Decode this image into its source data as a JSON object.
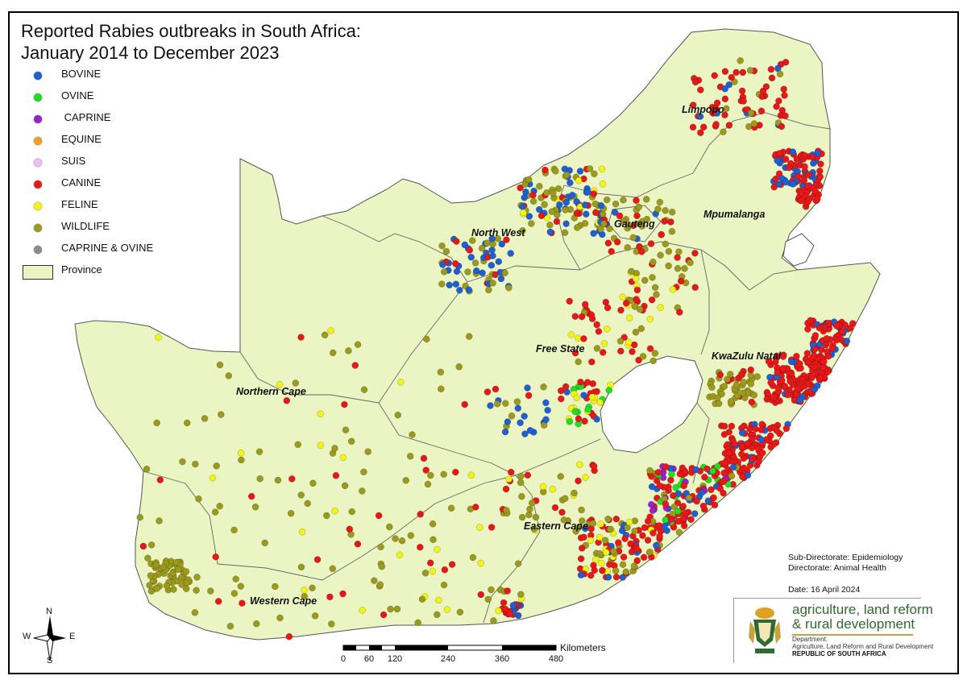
{
  "title": {
    "line1": "Reported Rabies outbreaks in South Africa:",
    "line2": "January 2014  to December 2023"
  },
  "legend": [
    {
      "label": "BOVINE",
      "color": "#1f5fd0"
    },
    {
      "label": "OVINE",
      "color": "#22dd22"
    },
    {
      "label": " CAPRINE",
      "color": "#9a1fd1"
    },
    {
      "label": "EQUINE",
      "color": "#f5a01a"
    },
    {
      "label": "SUIS",
      "color": "#f2c0ec"
    },
    {
      "label": "CANINE",
      "color": "#e81818"
    },
    {
      "label": "FELINE",
      "color": "#f4f412"
    },
    {
      "label": "WILDLIFE",
      "color": "#9c9a1c"
    },
    {
      "label": "CAPRINE & OVINE",
      "color": "#8c8c8c"
    }
  ],
  "legend_province": {
    "label": "Province",
    "color": "#eaf5c3"
  },
  "provinces": [
    "Limpopo",
    "Mpumalanga",
    "North West",
    "Gauteng",
    "Free State",
    "KwaZulu Natal",
    "Northern Cape",
    "Eastern Cape",
    "Western Cape"
  ],
  "credits": {
    "line1": "Sub-Directorate: Epidemiology",
    "line2": "Directorate: Animal Health",
    "date": "Date: 16 April 2024"
  },
  "logo": {
    "line1": "agriculture, land reform",
    "line2": "& rural development",
    "dept1": "Department:",
    "dept2": "Agriculture, Land Reform and Rural Development",
    "dept3": "REPUBLIC OF SOUTH AFRICA",
    "icon": "coat-of-arms-icon"
  },
  "scale": {
    "label": "Kilometers",
    "ticks": [
      "0",
      "60",
      "120",
      "240",
      "360",
      "480"
    ]
  },
  "compass": {
    "n": "N",
    "s": "S",
    "e": "E",
    "w": "W",
    "icon": "north-arrow-icon"
  }
}
